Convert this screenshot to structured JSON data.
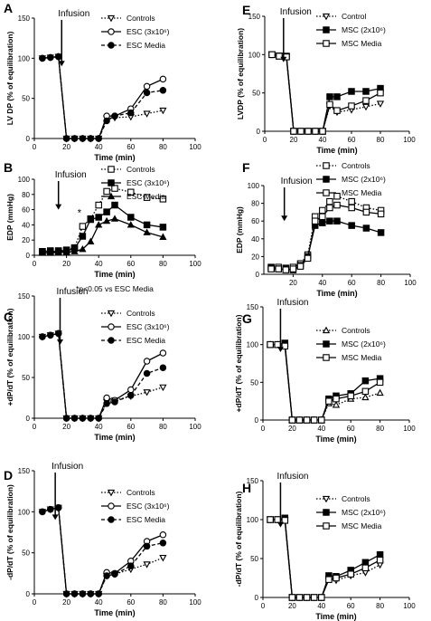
{
  "chart_data": [
    {
      "panel": "A",
      "type": "line",
      "ylabel": "LV DP (% of equilibration)",
      "xlabel": "Time (min)",
      "xlim": [
        0,
        100
      ],
      "ylim": [
        0,
        150
      ],
      "xticks": [
        "0",
        "20",
        "40",
        "60",
        "80",
        "100"
      ],
      "yticks": [
        "0",
        "50",
        "100",
        "150"
      ],
      "annotation": "Infusion",
      "arrow_x": 17,
      "legend": [
        "Controls",
        "ESC (3x10⁶)",
        "ESC Media"
      ],
      "series": [
        {
          "name": "Controls",
          "marker": "triangle-down-open",
          "dash": "dotted",
          "x": [
            5,
            10,
            15,
            20,
            25,
            30,
            35,
            40,
            45,
            50,
            60,
            70,
            80
          ],
          "y": [
            100,
            101,
            102,
            0,
            0,
            0,
            0,
            0,
            25,
            26,
            27,
            31,
            35
          ]
        },
        {
          "name": "ESC (3x10⁶)",
          "marker": "circle-open",
          "dash": "solid",
          "x": [
            5,
            10,
            15,
            20,
            25,
            30,
            35,
            40,
            45,
            50,
            60,
            70,
            80
          ],
          "y": [
            100,
            101,
            102,
            0,
            0,
            0,
            0,
            0,
            28,
            28,
            37,
            65,
            74
          ]
        },
        {
          "name": "ESC Media",
          "marker": "circle-filled",
          "dash": "dashed",
          "x": [
            5,
            10,
            15,
            20,
            25,
            30,
            35,
            40,
            45,
            50,
            60,
            70,
            80
          ],
          "y": [
            100,
            101,
            102,
            0,
            0,
            0,
            0,
            0,
            22,
            28,
            32,
            57,
            60
          ]
        }
      ]
    },
    {
      "panel": "B",
      "type": "line",
      "ylabel": "EDP (mmHg)",
      "xlabel": "Time (min)",
      "xlim": [
        0,
        100
      ],
      "ylim": [
        0,
        100
      ],
      "xticks": [
        "0",
        "20",
        "40",
        "60",
        "80",
        "100"
      ],
      "yticks": [
        "0",
        "20",
        "40",
        "60",
        "80",
        "100"
      ],
      "annotation": "Infusion",
      "arrow_x": 15,
      "star_x": 28,
      "star_y": 52,
      "footnote": "*p<0.05 vs ESC Media",
      "legend": [
        "Controls",
        "ESC (3x10⁶)",
        "ESC Media"
      ],
      "series": [
        {
          "name": "Controls",
          "marker": "square-open",
          "dash": "dotted",
          "x": [
            5,
            10,
            15,
            20,
            25,
            30,
            35,
            40,
            45,
            50,
            60,
            70,
            80
          ],
          "y": [
            5,
            6,
            6,
            7,
            10,
            38,
            48,
            66,
            84,
            88,
            83,
            76,
            74
          ]
        },
        {
          "name": "ESC (3x10⁶)",
          "marker": "square-filled",
          "dash": "solid",
          "x": [
            5,
            10,
            15,
            20,
            25,
            30,
            35,
            40,
            45,
            50,
            60,
            70,
            80
          ],
          "y": [
            5,
            5,
            5,
            6,
            9,
            25,
            47,
            50,
            57,
            66,
            50,
            40,
            37
          ]
        },
        {
          "name": "ESC Media",
          "marker": "triangle-filled",
          "dash": "solid",
          "x": [
            5,
            10,
            15,
            20,
            25,
            30,
            35,
            40,
            45,
            50,
            60,
            70,
            80
          ],
          "y": [
            3,
            3,
            4,
            4,
            5,
            8,
            18,
            40,
            45,
            48,
            40,
            30,
            24
          ]
        }
      ]
    },
    {
      "panel": "C",
      "type": "line",
      "ylabel": "+dP/dT (% of equilibration)",
      "xlabel": "Time (min)",
      "xlim": [
        0,
        100
      ],
      "ylim": [
        0,
        150
      ],
      "xticks": [
        "0",
        "20",
        "40",
        "60",
        "80",
        "100"
      ],
      "yticks": [
        "0",
        "50",
        "100",
        "150"
      ],
      "annotation": "Infusion",
      "arrow_x": 16,
      "legend": [
        "Controls",
        "ESC (3x10⁶)",
        "ESC Media"
      ],
      "series": [
        {
          "name": "Controls",
          "marker": "triangle-down-open",
          "dash": "dotted",
          "x": [
            5,
            10,
            15,
            20,
            25,
            30,
            35,
            40,
            45,
            50,
            60,
            70,
            80
          ],
          "y": [
            100,
            102,
            104,
            0,
            0,
            0,
            0,
            0,
            20,
            22,
            27,
            32,
            38
          ]
        },
        {
          "name": "ESC (3x10⁶)",
          "marker": "circle-open",
          "dash": "solid",
          "x": [
            5,
            10,
            15,
            20,
            25,
            30,
            35,
            40,
            45,
            50,
            60,
            70,
            80
          ],
          "y": [
            100,
            102,
            104,
            0,
            0,
            0,
            0,
            0,
            25,
            22,
            35,
            70,
            80
          ]
        },
        {
          "name": "ESC Media",
          "marker": "circle-filled",
          "dash": "dashed",
          "x": [
            5,
            10,
            15,
            20,
            25,
            30,
            35,
            40,
            45,
            50,
            60,
            70,
            80
          ],
          "y": [
            100,
            102,
            104,
            0,
            0,
            0,
            0,
            0,
            18,
            20,
            28,
            55,
            62
          ]
        }
      ]
    },
    {
      "panel": "D",
      "type": "line",
      "ylabel": "-dP/dT (% of equilibration)",
      "xlabel": "Time (min)",
      "xlim": [
        0,
        100
      ],
      "ylim": [
        0,
        150
      ],
      "xticks": [
        "0",
        "20",
        "40",
        "60",
        "80",
        "100"
      ],
      "yticks": [
        "0",
        "50",
        "100",
        "150"
      ],
      "annotation": "Infusion",
      "arrow_x": 13,
      "legend": [
        "Controls",
        "ESC (3x10⁶)",
        "ESC Media"
      ],
      "series": [
        {
          "name": "Controls",
          "marker": "triangle-down-open",
          "dash": "dotted",
          "x": [
            5,
            10,
            15,
            20,
            25,
            30,
            35,
            40,
            45,
            50,
            60,
            70,
            80
          ],
          "y": [
            100,
            103,
            105,
            0,
            0,
            0,
            0,
            0,
            22,
            24,
            30,
            36,
            44
          ]
        },
        {
          "name": "ESC (3x10⁶)",
          "marker": "circle-open",
          "dash": "solid",
          "x": [
            5,
            10,
            15,
            20,
            25,
            30,
            35,
            40,
            45,
            50,
            60,
            70,
            80
          ],
          "y": [
            100,
            103,
            105,
            0,
            0,
            0,
            0,
            0,
            26,
            25,
            40,
            64,
            72
          ]
        },
        {
          "name": "ESC Media",
          "marker": "circle-filled",
          "dash": "dashed",
          "x": [
            5,
            10,
            15,
            20,
            25,
            30,
            35,
            40,
            45,
            50,
            60,
            70,
            80
          ],
          "y": [
            100,
            103,
            105,
            0,
            0,
            0,
            0,
            0,
            22,
            24,
            34,
            58,
            62
          ]
        }
      ]
    },
    {
      "panel": "E",
      "type": "line",
      "ylabel": "LVDP (% of equilibration)",
      "xlabel": "Time (min)",
      "xlim": [
        0,
        100
      ],
      "ylim": [
        0,
        150
      ],
      "xticks": [
        "0",
        "20",
        "40",
        "60",
        "80",
        "100"
      ],
      "yticks": [
        "0",
        "50",
        "100",
        "150"
      ],
      "annotation": "Infusion",
      "arrow_x": 13,
      "legend": [
        "Control",
        "MSC (2x10⁶)",
        "MSC Media"
      ],
      "series": [
        {
          "name": "Control",
          "marker": "triangle-down-open",
          "dash": "dotted",
          "x": [
            5,
            10,
            15,
            20,
            25,
            30,
            35,
            40,
            45,
            50,
            60,
            70,
            80
          ],
          "y": [
            100,
            99,
            98,
            0,
            0,
            0,
            0,
            0,
            33,
            25,
            28,
            32,
            36
          ]
        },
        {
          "name": "MSC (2x10⁶)",
          "marker": "square-filled",
          "dash": "solid",
          "x": [
            5,
            10,
            15,
            20,
            25,
            30,
            35,
            40,
            45,
            50,
            60,
            70,
            80
          ],
          "y": [
            100,
            98,
            98,
            0,
            0,
            0,
            0,
            0,
            45,
            45,
            52,
            52,
            56
          ]
        },
        {
          "name": "MSC Media",
          "marker": "square-open",
          "dash": "solid",
          "x": [
            5,
            10,
            15,
            20,
            25,
            30,
            35,
            40,
            45,
            50,
            60,
            70,
            80
          ],
          "y": [
            100,
            98,
            97,
            0,
            0,
            0,
            0,
            0,
            35,
            27,
            33,
            40,
            50
          ]
        }
      ]
    },
    {
      "panel": "F",
      "type": "line",
      "ylabel": "EDP (mmHg)",
      "xlabel": "Time (min)",
      "xlim": [
        0,
        100
      ],
      "ylim": [
        0,
        100
      ],
      "xticks": [
        "20",
        "40",
        "60",
        "80",
        "100"
      ],
      "yticks": [
        "0",
        "20",
        "40",
        "60",
        "80",
        "100"
      ],
      "annotation": "Infusion",
      "arrow_x": 14,
      "legend": [
        "Controls",
        "MSC (2x10⁶)",
        "MSC Media"
      ],
      "series": [
        {
          "name": "Controls",
          "marker": "square-open",
          "dash": "dotted",
          "x": [
            5,
            10,
            15,
            20,
            25,
            30,
            35,
            40,
            45,
            50,
            60,
            70,
            80
          ],
          "y": [
            8,
            8,
            7,
            8,
            12,
            22,
            65,
            72,
            82,
            88,
            82,
            75,
            72
          ]
        },
        {
          "name": "MSC (2x10⁶)",
          "marker": "square-filled",
          "dash": "solid",
          "x": [
            5,
            10,
            15,
            20,
            25,
            30,
            35,
            40,
            45,
            50,
            60,
            70,
            80
          ],
          "y": [
            7,
            6,
            6,
            5,
            10,
            20,
            55,
            58,
            60,
            60,
            55,
            52,
            47
          ]
        },
        {
          "name": "MSC Media",
          "marker": "square-open",
          "dash": "solid",
          "x": [
            5,
            10,
            15,
            20,
            25,
            30,
            35,
            40,
            45,
            50,
            60,
            70,
            80
          ],
          "y": [
            6,
            6,
            5,
            6,
            9,
            18,
            60,
            65,
            75,
            78,
            75,
            70,
            68
          ]
        }
      ]
    },
    {
      "panel": "G",
      "type": "line",
      "ylabel": "+dP/dT (% of equilibration)",
      "xlabel": "Time (min)",
      "xlim": [
        0,
        100
      ],
      "ylim": [
        0,
        150
      ],
      "xticks": [
        "0",
        "20",
        "40",
        "60",
        "80",
        "100"
      ],
      "yticks": [
        "0",
        "50",
        "100",
        "150"
      ],
      "annotation": "Infusion",
      "arrow_x": 12,
      "legend": [
        "Controls",
        "MSC (2x10⁶)",
        "MSC Media"
      ],
      "series": [
        {
          "name": "Controls",
          "marker": "triangle-open",
          "dash": "dotted",
          "x": [
            5,
            10,
            15,
            20,
            25,
            30,
            35,
            40,
            45,
            50,
            60,
            70,
            80
          ],
          "y": [
            100,
            100,
            101,
            0,
            0,
            0,
            0,
            0,
            22,
            20,
            28,
            30,
            36
          ]
        },
        {
          "name": "MSC (2x10⁶)",
          "marker": "square-filled",
          "dash": "solid",
          "x": [
            5,
            10,
            15,
            20,
            25,
            30,
            35,
            40,
            45,
            50,
            60,
            70,
            80
          ],
          "y": [
            100,
            100,
            102,
            0,
            0,
            0,
            0,
            0,
            28,
            32,
            35,
            52,
            55
          ]
        },
        {
          "name": "MSC Media",
          "marker": "square-open",
          "dash": "solid",
          "x": [
            5,
            10,
            15,
            20,
            25,
            30,
            35,
            40,
            45,
            50,
            60,
            70,
            80
          ],
          "y": [
            100,
            100,
            98,
            0,
            0,
            0,
            0,
            0,
            25,
            28,
            32,
            38,
            50
          ]
        }
      ]
    },
    {
      "panel": "H",
      "type": "line",
      "ylabel": "-dP/dT (% of equilibration)",
      "xlabel": "Time (min)",
      "xlim": [
        0,
        100
      ],
      "ylim": [
        0,
        150
      ],
      "xticks": [
        "0",
        "20",
        "40",
        "60",
        "80",
        "100"
      ],
      "yticks": [
        "0",
        "50",
        "100",
        "150"
      ],
      "annotation": "Infusion",
      "arrow_x": 12,
      "legend": [
        "Controls",
        "MSC (2x10⁶)",
        "MSC Media"
      ],
      "series": [
        {
          "name": "Controls",
          "marker": "triangle-down-open",
          "dash": "dotted",
          "x": [
            5,
            10,
            15,
            20,
            25,
            30,
            35,
            40,
            45,
            50,
            60,
            70,
            80
          ],
          "y": [
            100,
            100,
            100,
            0,
            0,
            0,
            0,
            0,
            24,
            22,
            28,
            32,
            42
          ]
        },
        {
          "name": "MSC (2x10⁶)",
          "marker": "square-filled",
          "dash": "solid",
          "x": [
            5,
            10,
            15,
            20,
            25,
            30,
            35,
            40,
            45,
            50,
            60,
            70,
            80
          ],
          "y": [
            100,
            100,
            102,
            0,
            0,
            0,
            0,
            0,
            28,
            27,
            35,
            45,
            55
          ]
        },
        {
          "name": "MSC Media",
          "marker": "square-open",
          "dash": "solid",
          "x": [
            5,
            10,
            15,
            20,
            25,
            30,
            35,
            40,
            45,
            50,
            60,
            70,
            80
          ],
          "y": [
            100,
            100,
            99,
            0,
            0,
            0,
            0,
            0,
            23,
            25,
            30,
            38,
            48
          ]
        }
      ]
    }
  ]
}
